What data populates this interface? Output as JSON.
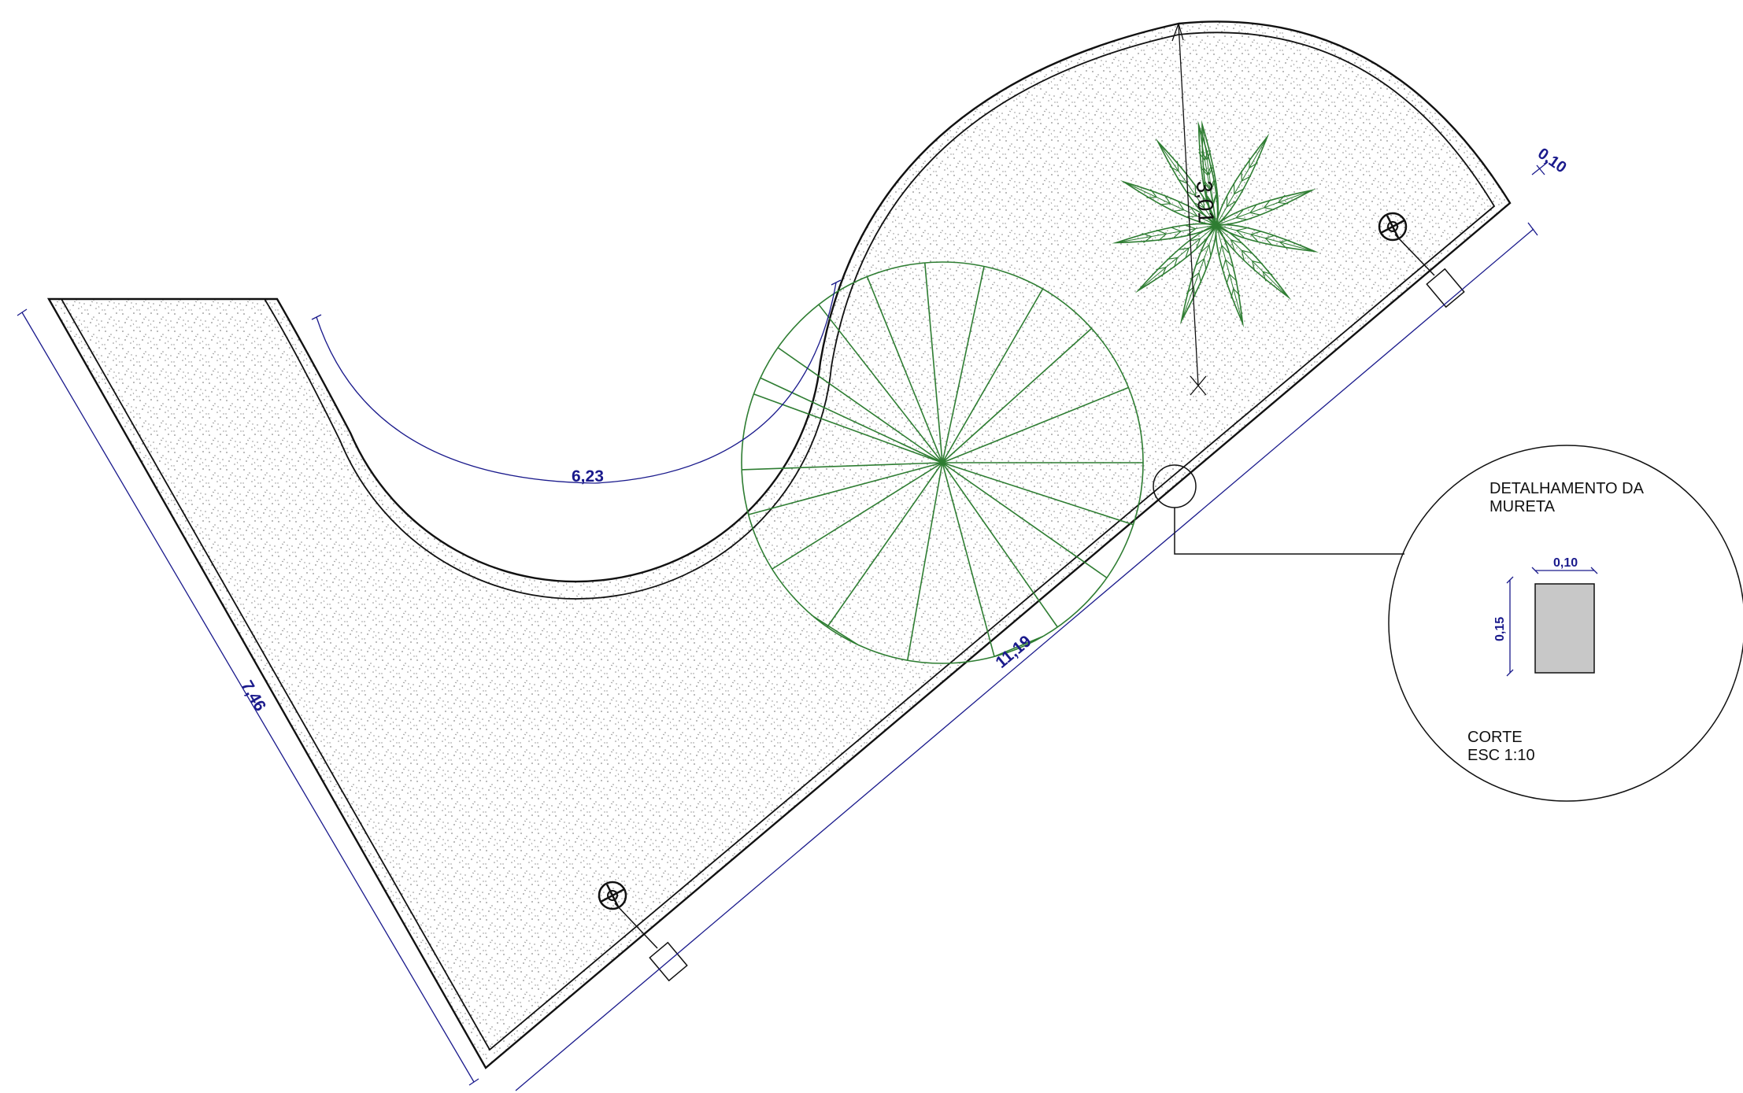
{
  "colors": {
    "dimension": "#1a1a8c",
    "outline": "#111111",
    "vegetation": "#2e7d32",
    "gravel_dot": "#8a8a8a",
    "section_fill": "#c8c8c8"
  },
  "dimensions": {
    "left_side": "7,46",
    "inner_arc": "6,23",
    "bottom_side": "11,19",
    "radius": "3,01",
    "top_offset": "0,10"
  },
  "detail": {
    "title_line1": "DETALHAMENTO DA",
    "title_line2": "MURETA",
    "width": "0,10",
    "height": "0,15",
    "caption_line1": "CORTE",
    "caption_line2": "ESC 1:10"
  },
  "icons": [
    "large-tree-icon",
    "palm-plant-icon",
    "spotlight-icon",
    "detail-callout-icon"
  ]
}
